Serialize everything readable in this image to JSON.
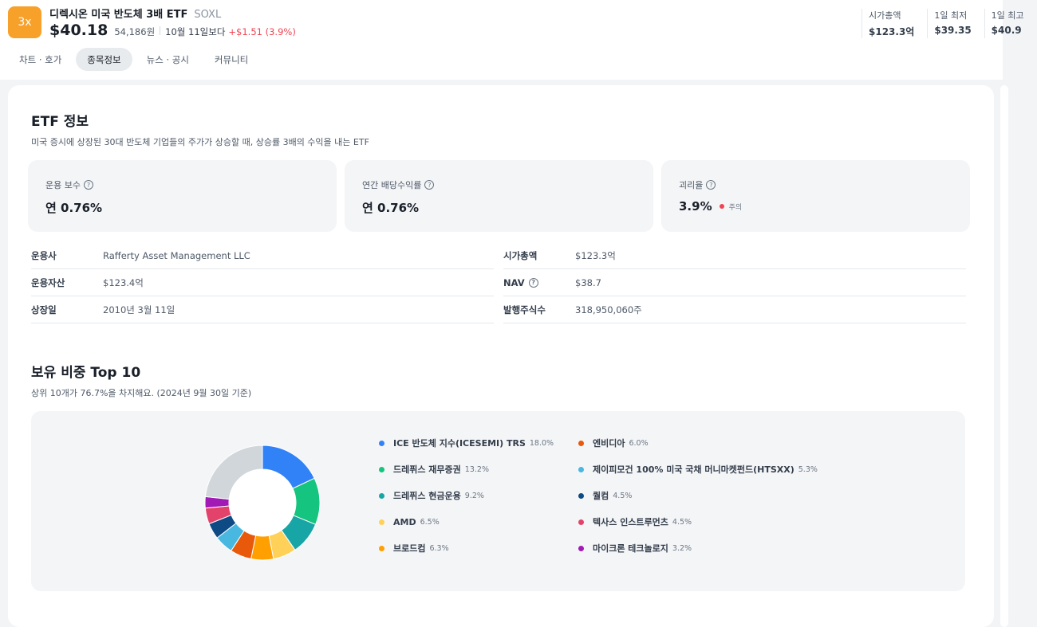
{
  "header": {
    "logo_text": "3x",
    "name": "디렉시온 미국 반도체 3배 ETF",
    "ticker": "SOXL",
    "price": "$40.18",
    "price_krw": "54,186원",
    "since_label": "10월 11일보다",
    "change": "+$1.51 (3.9%)",
    "stats": [
      {
        "label": "시가총액",
        "value": "$123.3억"
      },
      {
        "label": "1일 최저",
        "value": "$39.35"
      },
      {
        "label": "1일 최고",
        "value": "$40.9"
      }
    ]
  },
  "tabs": [
    {
      "label": "차트 · 호가"
    },
    {
      "label": "종목정보",
      "active": true
    },
    {
      "label": "뉴스 · 공시"
    },
    {
      "label": "커뮤니티"
    }
  ],
  "etf_info": {
    "title": "ETF 정보",
    "subtitle": "미국 증시에 상장된 30대 반도체 기업들의 주가가 상승할 때, 상승률 3배의 수익을 내는 ETF",
    "boxes": [
      {
        "label": "운용 보수",
        "value": "연 0.76%"
      },
      {
        "label": "연간 배당수익률",
        "value": "연 0.76%"
      },
      {
        "label": "괴리율",
        "value": "3.9%",
        "badge": "주의"
      }
    ],
    "left_rows": [
      {
        "key": "운용사",
        "value": "Rafferty Asset Management LLC"
      },
      {
        "key": "운용자산",
        "value": "$123.4억"
      },
      {
        "key": "상장일",
        "value": "2010년 3월 11일"
      }
    ],
    "right_rows": [
      {
        "key": "시가총액",
        "value": "$123.3억"
      },
      {
        "key": "NAV",
        "value": "$38.7",
        "help": true
      },
      {
        "key": "발행주식수",
        "value": "318,950,060주"
      }
    ]
  },
  "holdings": {
    "title": "보유 비중 Top 10",
    "subtitle": "상위 10개가 76.7%을 차지해요. (2024년 9월 30일 기준)",
    "other_color": "#d1d6db",
    "items": [
      {
        "name": "ICE 반도체 지수(ICESEMI) TRS",
        "pct": "18.0%",
        "value": 18.0,
        "color": "#3182f6"
      },
      {
        "name": "드레퓌스 재무증권",
        "pct": "13.2%",
        "value": 13.2,
        "color": "#15c47e"
      },
      {
        "name": "드레퓌스 현금운용",
        "pct": "9.2%",
        "value": 9.2,
        "color": "#18a5a5"
      },
      {
        "name": "AMD",
        "pct": "6.5%",
        "value": 6.5,
        "color": "#ffd158"
      },
      {
        "name": "브로드컴",
        "pct": "6.3%",
        "value": 6.3,
        "color": "#ff9f00"
      },
      {
        "name": "엔비디아",
        "pct": "6.0%",
        "value": 6.0,
        "color": "#e8590c"
      },
      {
        "name": "제이피모건 100% 미국 국채 머니마켓펀드(HTSXX)",
        "pct": "5.3%",
        "value": 5.3,
        "color": "#48b8e0"
      },
      {
        "name": "퀄컴",
        "pct": "4.5%",
        "value": 4.5,
        "color": "#0e4a84"
      },
      {
        "name": "텍사스 인스트루먼츠",
        "pct": "4.5%",
        "value": 4.5,
        "color": "#e3436b"
      },
      {
        "name": "마이크론 테크놀로지",
        "pct": "3.2%",
        "value": 3.2,
        "color": "#a11ab5"
      }
    ]
  }
}
